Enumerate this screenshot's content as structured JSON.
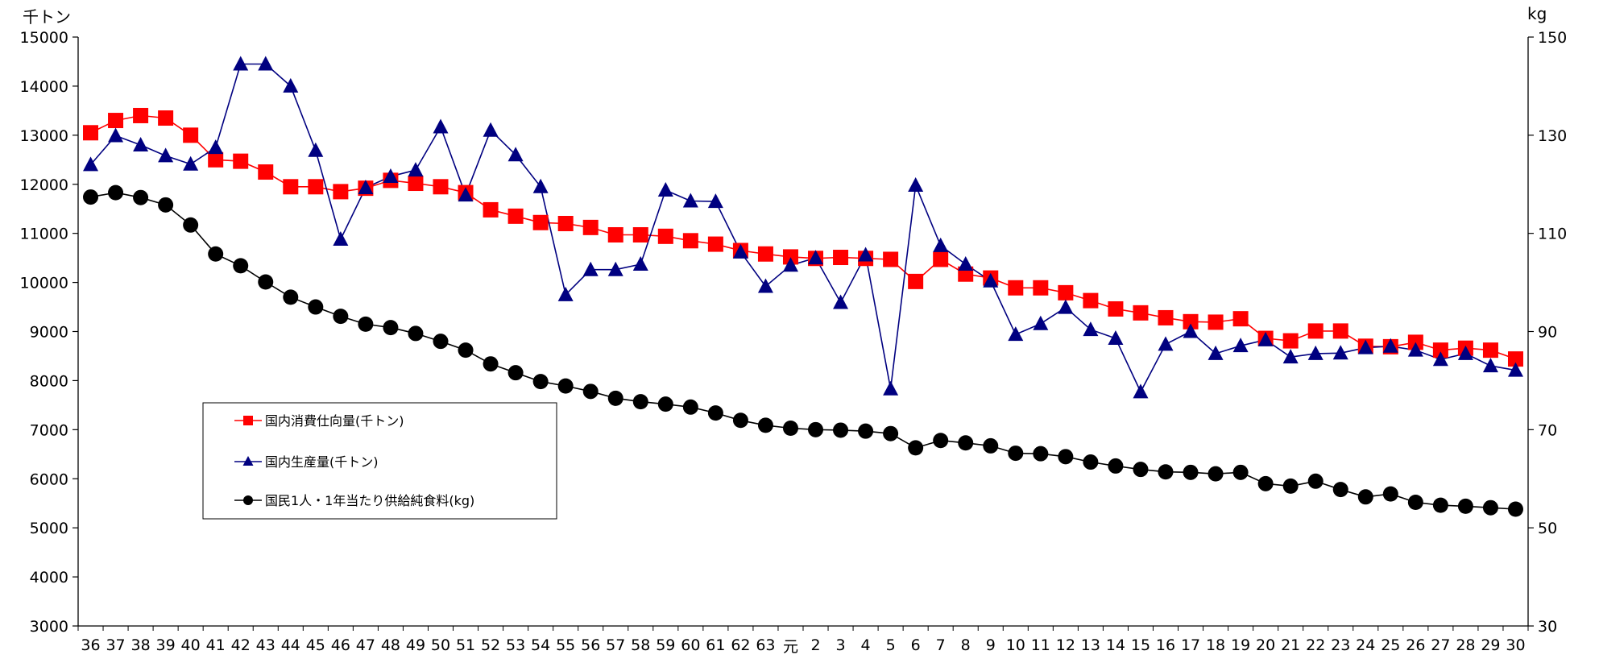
{
  "chart_data": {
    "type": "line",
    "left_axis": {
      "unit": "千トン",
      "ylim": [
        3000,
        15000
      ],
      "ticks": [
        "3000",
        "4000",
        "5000",
        "6000",
        "7000",
        "8000",
        "9000",
        "10000",
        "11000",
        "12000",
        "13000",
        "14000",
        "15000"
      ]
    },
    "right_axis": {
      "unit": "kg",
      "ylim": [
        30,
        150
      ],
      "ticks": [
        "30",
        "50",
        "70",
        "90",
        "110",
        "130",
        "150"
      ]
    },
    "categories": [
      "36",
      "37",
      "38",
      "39",
      "40",
      "41",
      "42",
      "43",
      "44",
      "45",
      "46",
      "47",
      "48",
      "49",
      "50",
      "51",
      "52",
      "53",
      "54",
      "55",
      "56",
      "57",
      "58",
      "59",
      "60",
      "61",
      "62",
      "63",
      "元",
      "2",
      "3",
      "4",
      "5",
      "6",
      "7",
      "8",
      "9",
      "10",
      "11",
      "12",
      "13",
      "14",
      "15",
      "16",
      "17",
      "18",
      "19",
      "20",
      "21",
      "22",
      "23",
      "24",
      "25",
      "26",
      "27",
      "28",
      "29",
      "30"
    ],
    "legend_position": "left-middle",
    "series": [
      {
        "name": "国内消費仕向量(千トン)",
        "axis": "left",
        "color": "#ff0000",
        "line_color": "#ff0000",
        "marker": "square",
        "values": [
          13050,
          13300,
          13400,
          13350,
          13000,
          12500,
          12470,
          12250,
          11950,
          11950,
          11850,
          11920,
          12080,
          12020,
          11950,
          11830,
          11480,
          11350,
          11220,
          11200,
          11120,
          10970,
          10970,
          10940,
          10850,
          10780,
          10650,
          10580,
          10520,
          10490,
          10510,
          10490,
          10470,
          10020,
          10470,
          10170,
          10090,
          9890,
          9890,
          9790,
          9630,
          9460,
          9380,
          9280,
          9200,
          9190,
          9260,
          8860,
          8810,
          9010,
          9010,
          8700,
          8690,
          8780,
          8620,
          8660,
          8620,
          8440
        ]
      },
      {
        "name": "国内生産量(千トン)",
        "axis": "left",
        "color": "#000080",
        "line_color": "#000080",
        "marker": "triangle",
        "values": [
          12400,
          12990,
          12800,
          12580,
          12410,
          12750,
          14450,
          14450,
          14000,
          12690,
          10880,
          11930,
          12160,
          12290,
          13170,
          11780,
          13100,
          12600,
          11950,
          9750,
          10260,
          10260,
          10370,
          11880,
          11660,
          11650,
          10620,
          9920,
          10350,
          10500,
          9590,
          10560,
          7830,
          11980,
          10750,
          10370,
          10030,
          8940,
          9160,
          9490,
          9040,
          8860,
          7770,
          8740,
          9000,
          8550,
          8710,
          8830,
          8480,
          8550,
          8560,
          8670,
          8700,
          8620,
          8430,
          8550,
          8300,
          8210
        ]
      },
      {
        "name": "国民1人・1年当たり供給純食料(kg)",
        "axis": "right",
        "color": "#000000",
        "line_color": "#000000",
        "marker": "circle",
        "values": [
          117.4,
          118.3,
          117.3,
          115.8,
          111.7,
          105.8,
          103.4,
          100.1,
          97.0,
          95.0,
          93.1,
          91.5,
          90.8,
          89.6,
          88.0,
          86.2,
          83.4,
          81.6,
          79.8,
          78.9,
          77.8,
          76.4,
          75.7,
          75.2,
          74.6,
          73.4,
          71.9,
          70.9,
          70.3,
          70.0,
          69.9,
          69.7,
          69.2,
          66.3,
          67.8,
          67.3,
          66.7,
          65.2,
          65.1,
          64.5,
          63.4,
          62.6,
          61.9,
          61.4,
          61.3,
          61.0,
          61.3,
          59.0,
          58.5,
          59.5,
          57.8,
          56.3,
          56.9,
          55.2,
          54.6,
          54.4,
          54.1,
          53.8
        ]
      }
    ]
  }
}
